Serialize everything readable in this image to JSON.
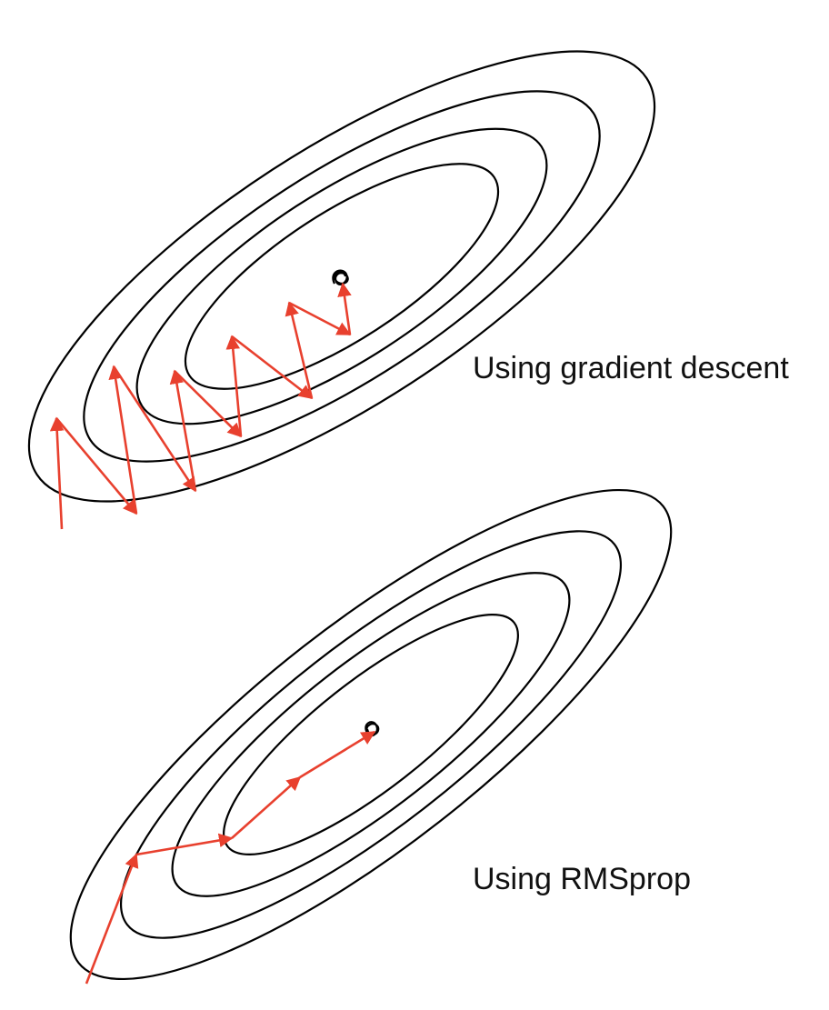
{
  "panels": [
    {
      "id": "gradient-descent",
      "caption": "Using gradient descent",
      "path_points": 13
    },
    {
      "id": "rmsprop",
      "caption": "Using RMSprop",
      "path_points": 6
    }
  ],
  "colors": {
    "contour": "#000000",
    "path": "#e8402e",
    "background": "#ffffff"
  }
}
